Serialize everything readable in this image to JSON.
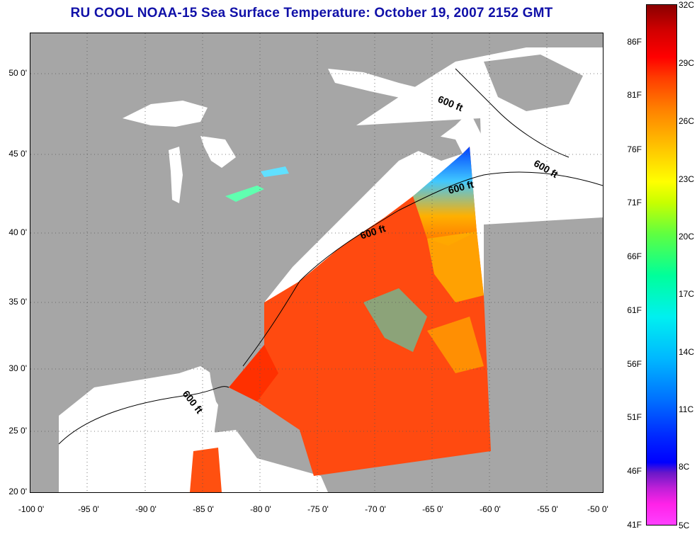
{
  "title": "RU COOL  NOAA-15  Sea Surface Temperature:  October 19, 2007 2152 GMT",
  "map": {
    "y_axis_labels": [
      "50 0'",
      "45 0'",
      "40 0'",
      "35 0'",
      "30 0'",
      "25 0'",
      "20 0'"
    ],
    "x_axis_labels": [
      "-100 0'",
      "-95 0'",
      "-90 0'",
      "-85 0'",
      "-80 0'",
      "-75 0'",
      "-70 0'",
      "-65 0'",
      "-60 0'",
      "-55 0'",
      "-50 0'"
    ],
    "contour_labels": [
      "600 ft",
      "600 ft",
      "600 ft",
      "600 ft",
      "600 ft"
    ],
    "land_color": "#a6a6a6",
    "cloud_color": "#ffffff"
  },
  "colorbar": {
    "fahrenheit_labels": [
      "86F",
      "81F",
      "76F",
      "71F",
      "66F",
      "61F",
      "56F",
      "51F",
      "46F",
      "41F"
    ],
    "celsius_labels": [
      "32C",
      "29C",
      "26C",
      "23C",
      "20C",
      "17C",
      "14C",
      "11C",
      "8C",
      "5C"
    ]
  }
}
